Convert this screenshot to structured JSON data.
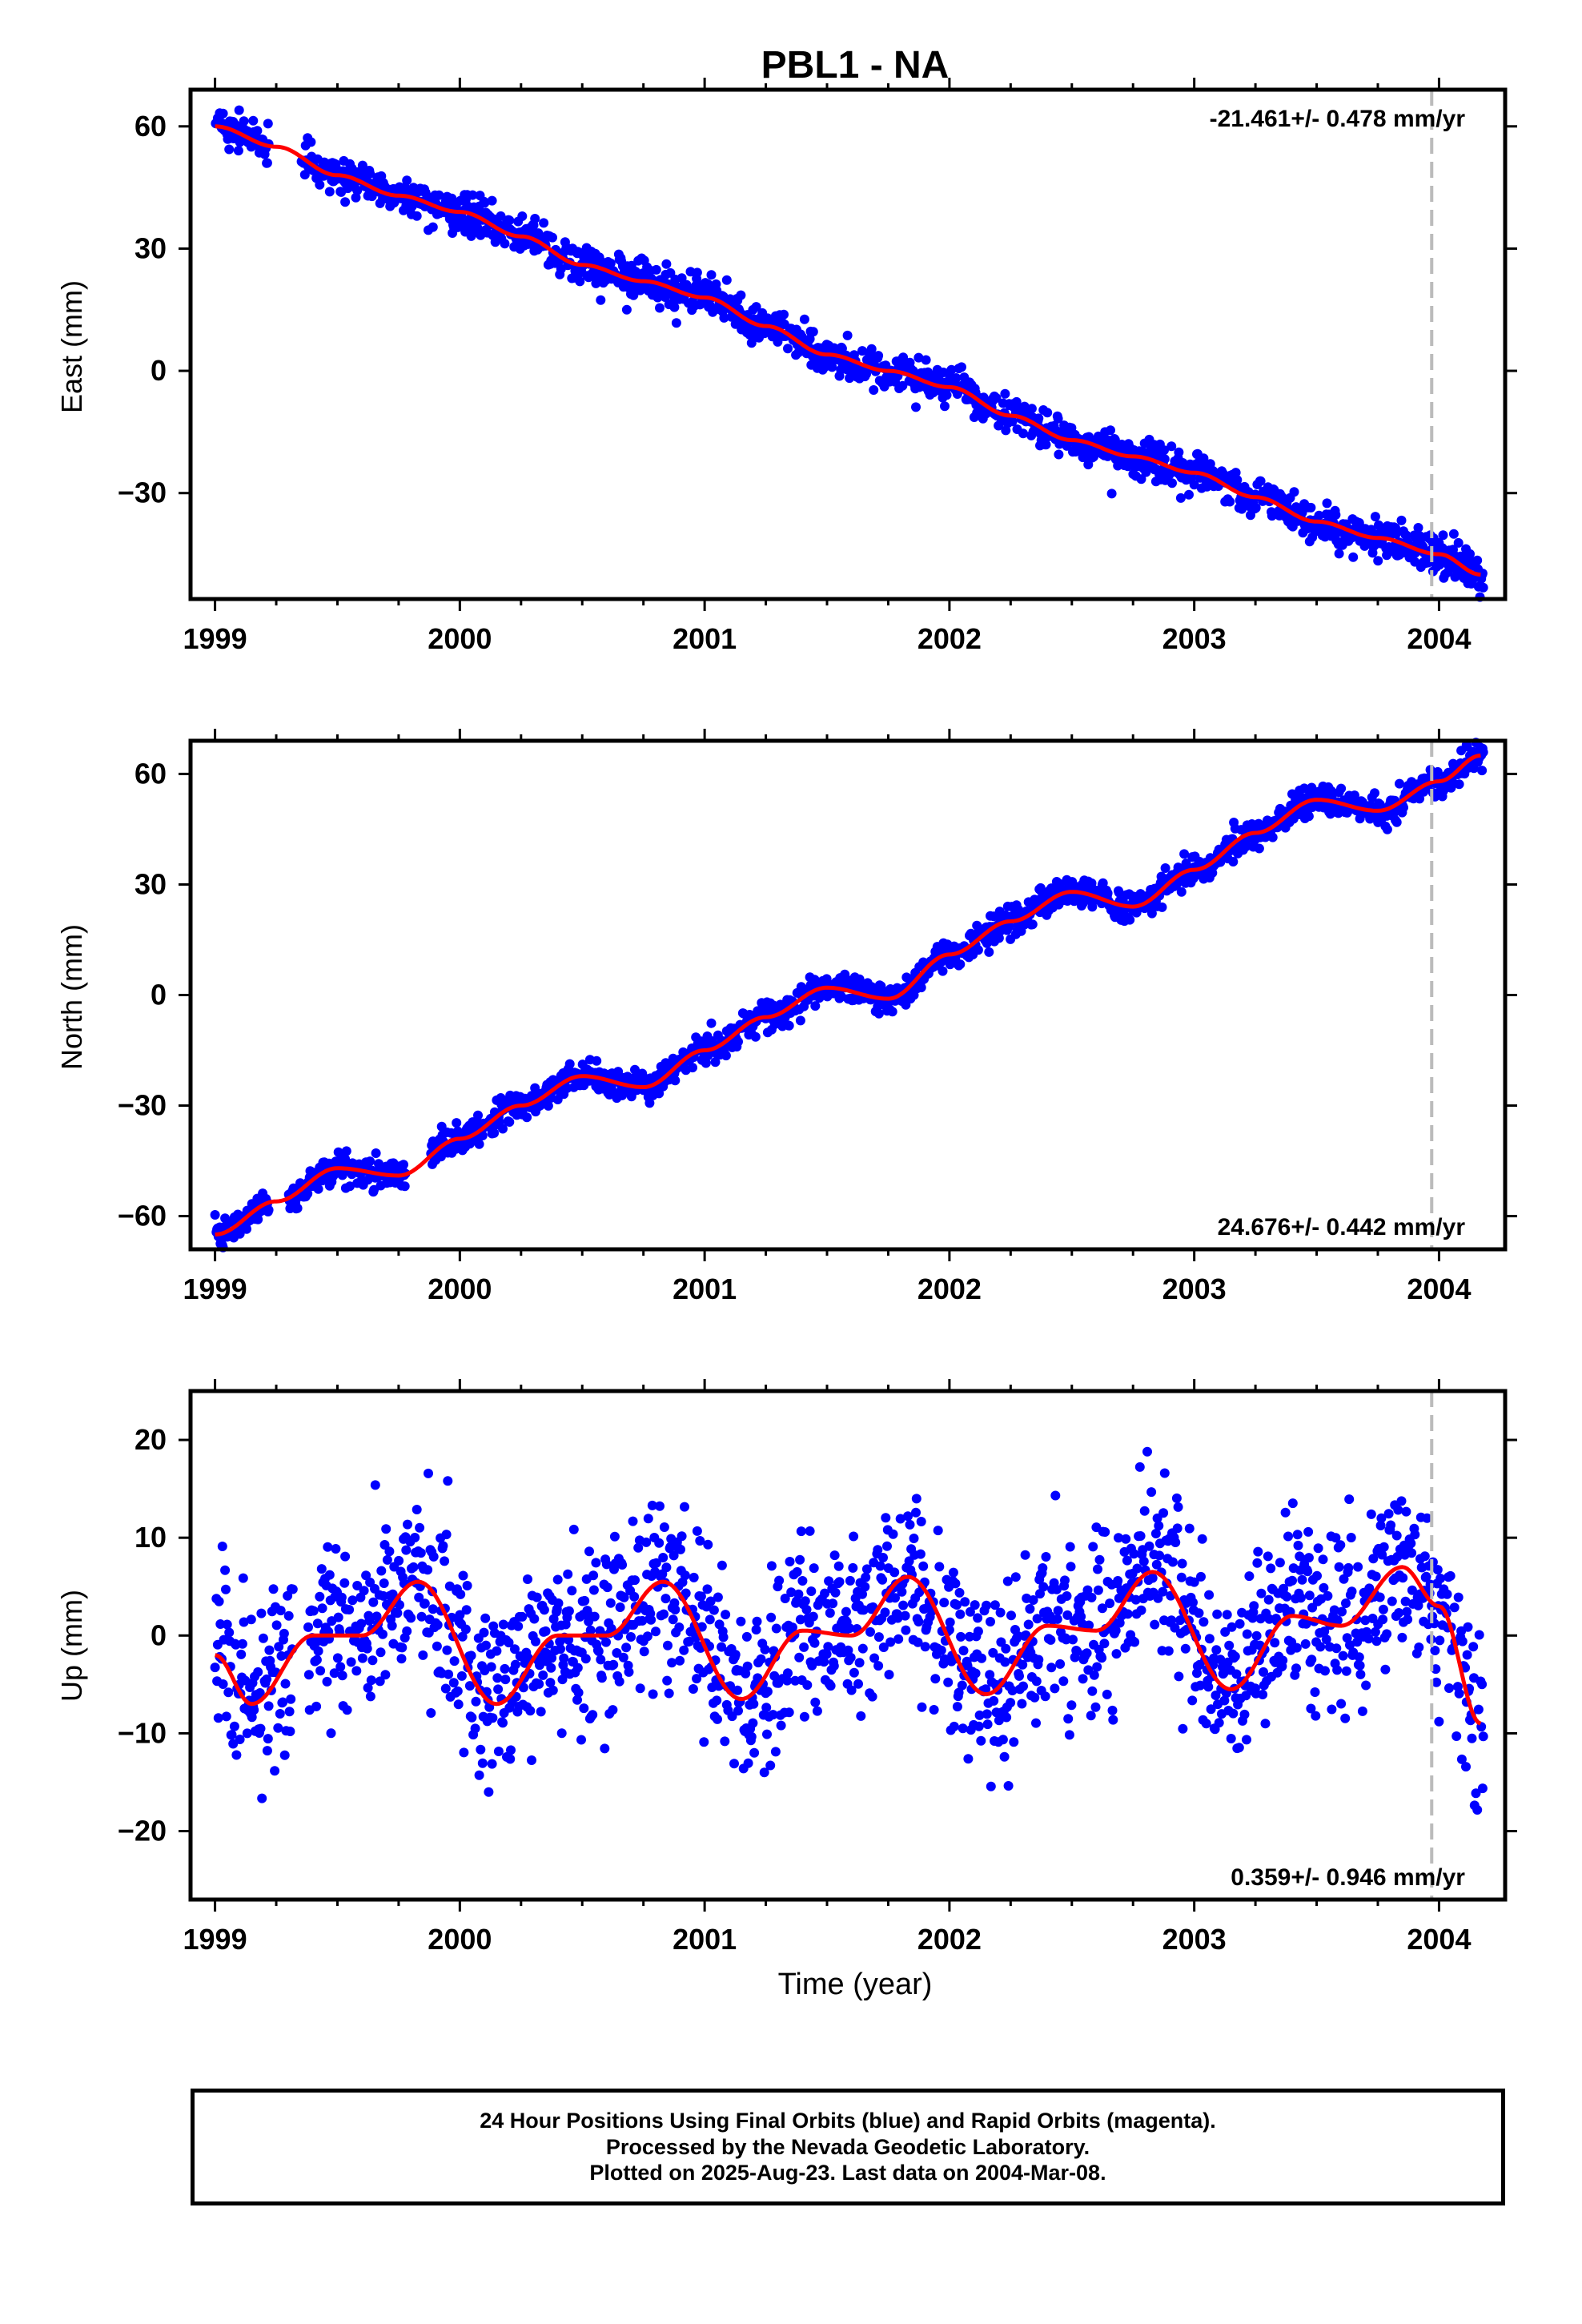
{
  "figure": {
    "title": "PBL1 - NA",
    "xlabel": "Time (year)",
    "colors": {
      "points": "#0000ff",
      "fit": "#ff0000",
      "last_data_line": "#bbbbbb",
      "axes": "#000000"
    }
  },
  "caption": {
    "line1": "24 Hour Positions Using Final Orbits (blue) and Rapid Orbits (magenta).",
    "line2": "Processed by the Nevada Geodetic Laboratory.",
    "line3": "Plotted on 2025-Aug-23. Last data on 2004-Mar-08."
  },
  "chart_data": [
    {
      "type": "scatter",
      "title": "PBL1 - NA",
      "ylabel": "East (mm)",
      "xlim": [
        1998.9,
        2004.27
      ],
      "ylim": [
        -56,
        69
      ],
      "xticks": [
        1999,
        2000,
        2001,
        2002,
        2003,
        2004
      ],
      "yticks": [
        -30,
        0,
        30,
        60
      ],
      "xtick_labels": [
        "1999",
        "2000",
        "2001",
        "2002",
        "2003",
        "2004"
      ],
      "ytick_labels": [
        "−30",
        "0",
        "30",
        "60"
      ],
      "rate_label": "-21.461+/- 0.478 mm/yr",
      "rate_label_position": "top-right",
      "last_data_line_x": 2003.97,
      "rate_mm_per_yr": -21.461,
      "fit_line": {
        "x": [
          1999.0,
          1999.25,
          1999.5,
          1999.75,
          2000.0,
          2000.25,
          2000.5,
          2000.75,
          2001.0,
          2001.25,
          2001.5,
          2001.75,
          2002.0,
          2002.25,
          2002.5,
          2002.75,
          2003.0,
          2003.25,
          2003.5,
          2003.75,
          2004.0,
          2004.17
        ],
        "y": [
          60,
          55,
          48,
          43,
          39,
          33,
          26,
          22,
          18,
          11,
          4,
          0,
          -4,
          -11,
          -17,
          -21,
          -25,
          -31,
          -37,
          -41,
          -45,
          -50
        ]
      },
      "series": [
        {
          "name": "",
          "kind": "daily positions",
          "x_start": 1999.0,
          "x_end": 2004.18,
          "scatter_mm": 2.3,
          "gaps": [
            [
              1999.22,
              1999.35
            ]
          ]
        }
      ]
    },
    {
      "type": "scatter",
      "ylabel": "North (mm)",
      "xlim": [
        1998.9,
        2004.27
      ],
      "ylim": [
        -69,
        69
      ],
      "xticks": [
        1999,
        2000,
        2001,
        2002,
        2003,
        2004
      ],
      "yticks": [
        -60,
        -30,
        0,
        30,
        60
      ],
      "xtick_labels": [
        "1999",
        "2000",
        "2001",
        "2002",
        "2003",
        "2004"
      ],
      "ytick_labels": [
        "−60",
        "−30",
        "0",
        "30",
        "60"
      ],
      "rate_label": "24.676+/- 0.442 mm/yr",
      "rate_label_position": "bottom-right",
      "last_data_line_x": 2003.97,
      "rate_mm_per_yr": 24.676,
      "fit_line": {
        "x": [
          1999.0,
          1999.25,
          1999.5,
          1999.75,
          2000.0,
          2000.25,
          2000.5,
          2000.75,
          2001.0,
          2001.25,
          2001.5,
          2001.75,
          2002.0,
          2002.25,
          2002.5,
          2002.75,
          2003.0,
          2003.25,
          2003.5,
          2003.75,
          2004.0,
          2004.17
        ],
        "y": [
          -65,
          -56,
          -47,
          -49,
          -39,
          -30,
          -22,
          -25,
          -15,
          -6,
          2,
          -1,
          11,
          20,
          28,
          24,
          34,
          44,
          53,
          50,
          58,
          65
        ]
      },
      "series": [
        {
          "name": "",
          "kind": "daily positions",
          "x_start": 1999.0,
          "x_end": 2004.18,
          "scatter_mm": 2.0,
          "gaps": [
            [
              1999.22,
              1999.3
            ],
            [
              1999.78,
              1999.88
            ]
          ]
        }
      ]
    },
    {
      "type": "scatter",
      "ylabel": "Up (mm)",
      "xlabel": "Time (year)",
      "xlim": [
        1998.9,
        2004.27
      ],
      "ylim": [
        -27,
        25
      ],
      "xticks": [
        1999,
        2000,
        2001,
        2002,
        2003,
        2004
      ],
      "yticks": [
        -20,
        -10,
        0,
        10,
        20
      ],
      "xtick_labels": [
        "1999",
        "2000",
        "2001",
        "2002",
        "2003",
        "2004"
      ],
      "ytick_labels": [
        "−20",
        "−10",
        "0",
        "10",
        "20"
      ],
      "rate_label": "0.359+/- 0.946 mm/yr",
      "rate_label_position": "bottom-right",
      "last_data_line_x": 2003.97,
      "rate_mm_per_yr": 0.359,
      "fit_line": {
        "x": [
          1999.0,
          1999.15,
          1999.4,
          1999.6,
          1999.83,
          2000.15,
          2000.4,
          2000.6,
          2000.83,
          2001.15,
          2001.4,
          2001.6,
          2001.83,
          2002.15,
          2002.4,
          2002.6,
          2002.83,
          2003.15,
          2003.4,
          2003.6,
          2003.85,
          2004.0,
          2004.17
        ],
        "y": [
          -2,
          -7,
          0,
          0,
          5.5,
          -7,
          0,
          0,
          5.5,
          -6.5,
          0.5,
          0,
          6,
          -6,
          1,
          0.5,
          6.5,
          -5.5,
          2,
          1,
          7,
          3,
          -9
        ]
      },
      "series": [
        {
          "name": "",
          "kind": "daily positions",
          "x_start": 1999.0,
          "x_end": 2004.18,
          "scatter_mm": 4.5,
          "gaps": [
            [
              1999.32,
              1999.38
            ]
          ]
        }
      ]
    }
  ]
}
